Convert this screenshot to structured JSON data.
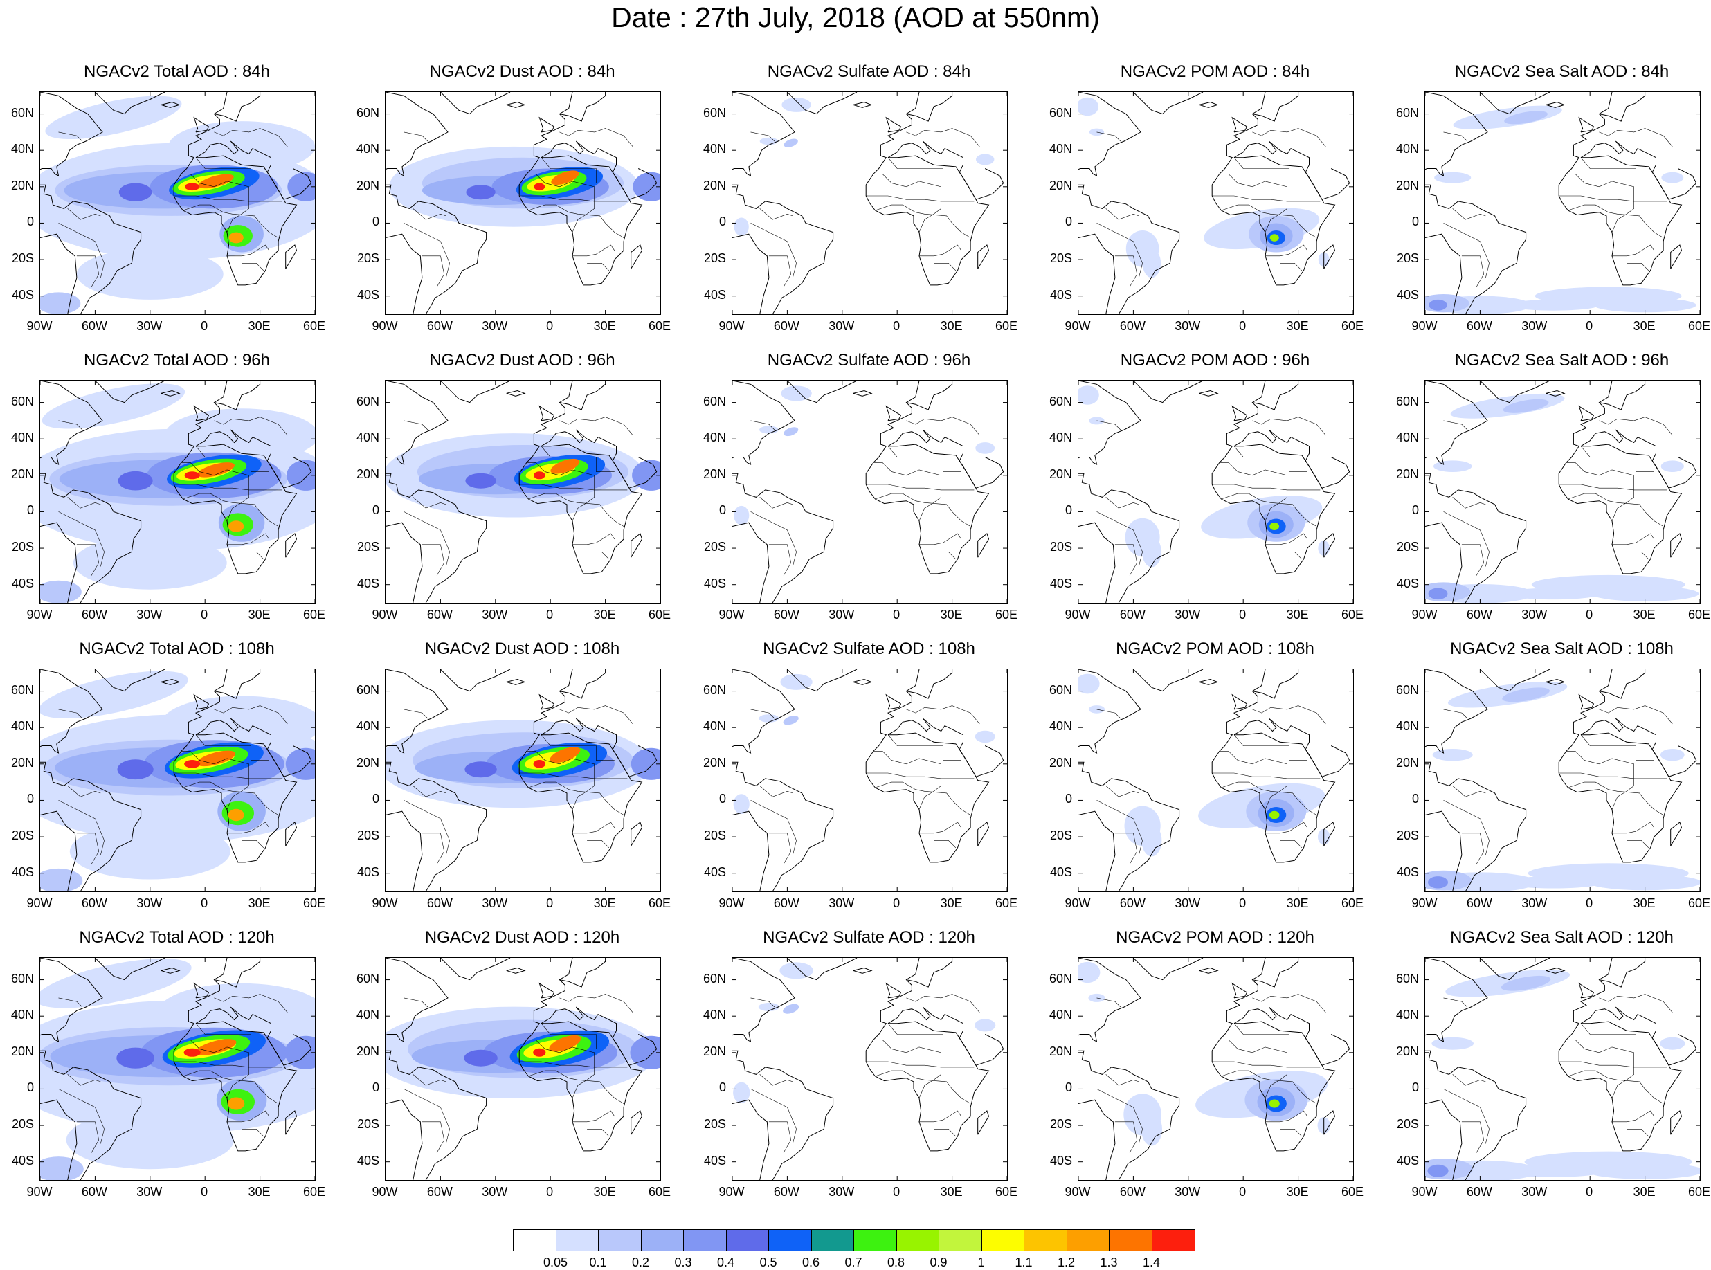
{
  "title": "Date : 27th July, 2018 (AOD at 550nm)",
  "lat_labels": [
    "60N",
    "40N",
    "20N",
    "0",
    "20S",
    "40S"
  ],
  "lat_values": [
    60,
    40,
    20,
    0,
    -20,
    -40
  ],
  "lon_labels": [
    "90W",
    "60W",
    "30W",
    "0",
    "30E",
    "60E"
  ],
  "lon_values": [
    -90,
    -60,
    -30,
    0,
    30,
    60
  ],
  "map_extent": {
    "lon": [
      -90,
      60
    ],
    "lat": [
      -50,
      72
    ]
  },
  "panels": [
    {
      "title": "NGACv2 Total AOD : 84h",
      "species": "total",
      "hour": 84
    },
    {
      "title": "NGACv2 Dust AOD : 84h",
      "species": "dust",
      "hour": 84
    },
    {
      "title": "NGACv2 Sulfate AOD : 84h",
      "species": "sulfate",
      "hour": 84
    },
    {
      "title": "NGACv2 POM AOD : 84h",
      "species": "pom",
      "hour": 84
    },
    {
      "title": "NGACv2 Sea Salt AOD : 84h",
      "species": "seasalt",
      "hour": 84
    },
    {
      "title": "NGACv2 Total AOD : 96h",
      "species": "total",
      "hour": 96
    },
    {
      "title": "NGACv2 Dust AOD : 96h",
      "species": "dust",
      "hour": 96
    },
    {
      "title": "NGACv2 Sulfate AOD : 96h",
      "species": "sulfate",
      "hour": 96
    },
    {
      "title": "NGACv2 POM AOD : 96h",
      "species": "pom",
      "hour": 96
    },
    {
      "title": "NGACv2 Sea Salt AOD : 96h",
      "species": "seasalt",
      "hour": 96
    },
    {
      "title": "NGACv2 Total AOD : 108h",
      "species": "total",
      "hour": 108
    },
    {
      "title": "NGACv2 Dust AOD : 108h",
      "species": "dust",
      "hour": 108
    },
    {
      "title": "NGACv2 Sulfate AOD : 108h",
      "species": "sulfate",
      "hour": 108
    },
    {
      "title": "NGACv2 POM AOD : 108h",
      "species": "pom",
      "hour": 108
    },
    {
      "title": "NGACv2 Sea Salt AOD : 108h",
      "species": "seasalt",
      "hour": 108
    },
    {
      "title": "NGACv2 Total AOD : 120h",
      "species": "total",
      "hour": 120
    },
    {
      "title": "NGACv2 Dust AOD : 120h",
      "species": "dust",
      "hour": 120
    },
    {
      "title": "NGACv2 Sulfate AOD : 120h",
      "species": "sulfate",
      "hour": 120
    },
    {
      "title": "NGACv2 POM AOD : 120h",
      "species": "pom",
      "hour": 120
    },
    {
      "title": "NGACv2 Sea Salt  AOD : 120h",
      "species": "seasalt",
      "hour": 120
    }
  ],
  "colorbar": {
    "labels": [
      "0.05",
      "0.1",
      "0.2",
      "0.3",
      "0.4",
      "0.5",
      "0.6",
      "0.7",
      "0.8",
      "0.9",
      "1",
      "1.1",
      "1.2",
      "1.3",
      "1.4"
    ],
    "colors": [
      "#ffffff",
      "#d5e0ff",
      "#b9c8fb",
      "#9cb1f7",
      "#8196f3",
      "#5f6bea",
      "#0f62f7",
      "#12998f",
      "#3df210",
      "#98f300",
      "#c2f53c",
      "#fdfd00",
      "#fdc400",
      "#fd9f00",
      "#fd7400",
      "#fd1f0d"
    ]
  }
}
